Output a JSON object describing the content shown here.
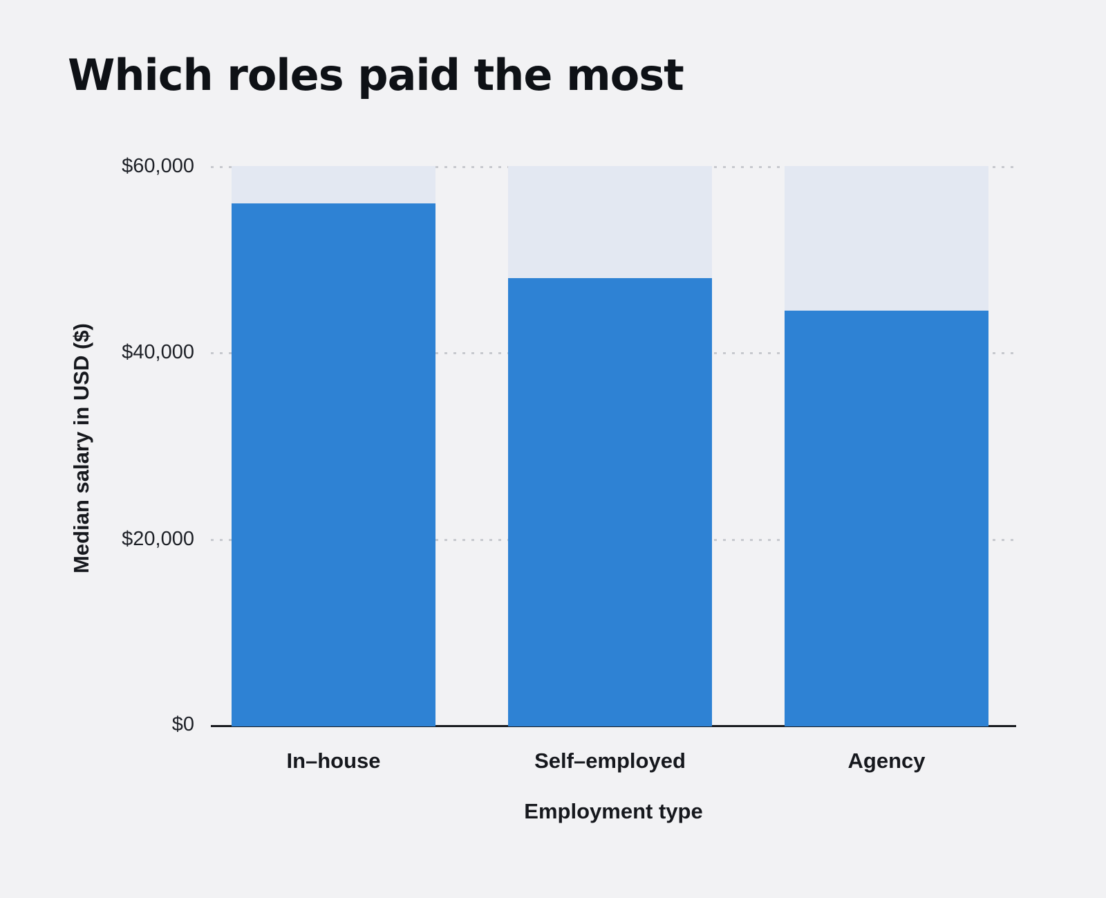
{
  "title": "Which roles paid the most",
  "chart_data": {
    "type": "bar",
    "title": "Which roles paid the most",
    "categories": [
      "In–house",
      "Self–employed",
      "Agency"
    ],
    "values": [
      56000,
      48000,
      44500
    ],
    "xlabel": "Employment type",
    "ylabel": "Median salary in USD ($)",
    "ylim": [
      0,
      60000
    ],
    "yticks": [
      0,
      20000,
      40000,
      60000
    ],
    "ytick_labels": [
      "$0",
      "$20,000",
      "$40,000",
      "$60,000"
    ],
    "grid": "dotted horizontal gridlines at each ytick, solid baseline at 0",
    "legend": "none",
    "track_max": 60000,
    "colors": {
      "bar": "#2e82d4",
      "track": "#e3e8f2",
      "background": "#f2f2f4",
      "gridline": "#c7c9ce",
      "baseline": "#17191d",
      "text": "#16181d"
    }
  }
}
